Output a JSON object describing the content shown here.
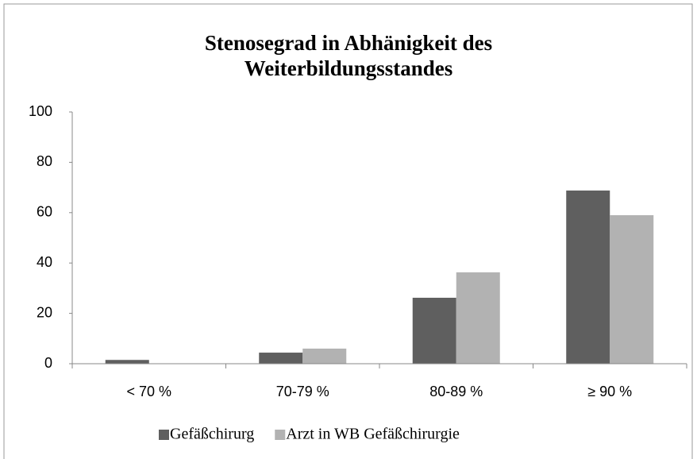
{
  "chart_data": {
    "type": "bar",
    "title": "Stenosegrad in Abhänigkeit des Weiterbildungsstandes",
    "categories": [
      "< 70 %",
      "70-79 %",
      "80-89 %",
      "≥ 90 %"
    ],
    "series": [
      {
        "name": "Gefäßchirurg",
        "color": "#5f5f5f",
        "values": [
          1.5,
          4.4,
          26.2,
          68.8
        ]
      },
      {
        "name": "Arzt in WB Gefäßchirurgie",
        "color": "#b2b2b2",
        "values": [
          0,
          6.0,
          36.3,
          59.0
        ]
      }
    ],
    "ylim": [
      0,
      100
    ],
    "yticks": [
      0,
      20,
      40,
      60,
      80,
      100
    ],
    "grid": false,
    "legend": "bottom"
  }
}
